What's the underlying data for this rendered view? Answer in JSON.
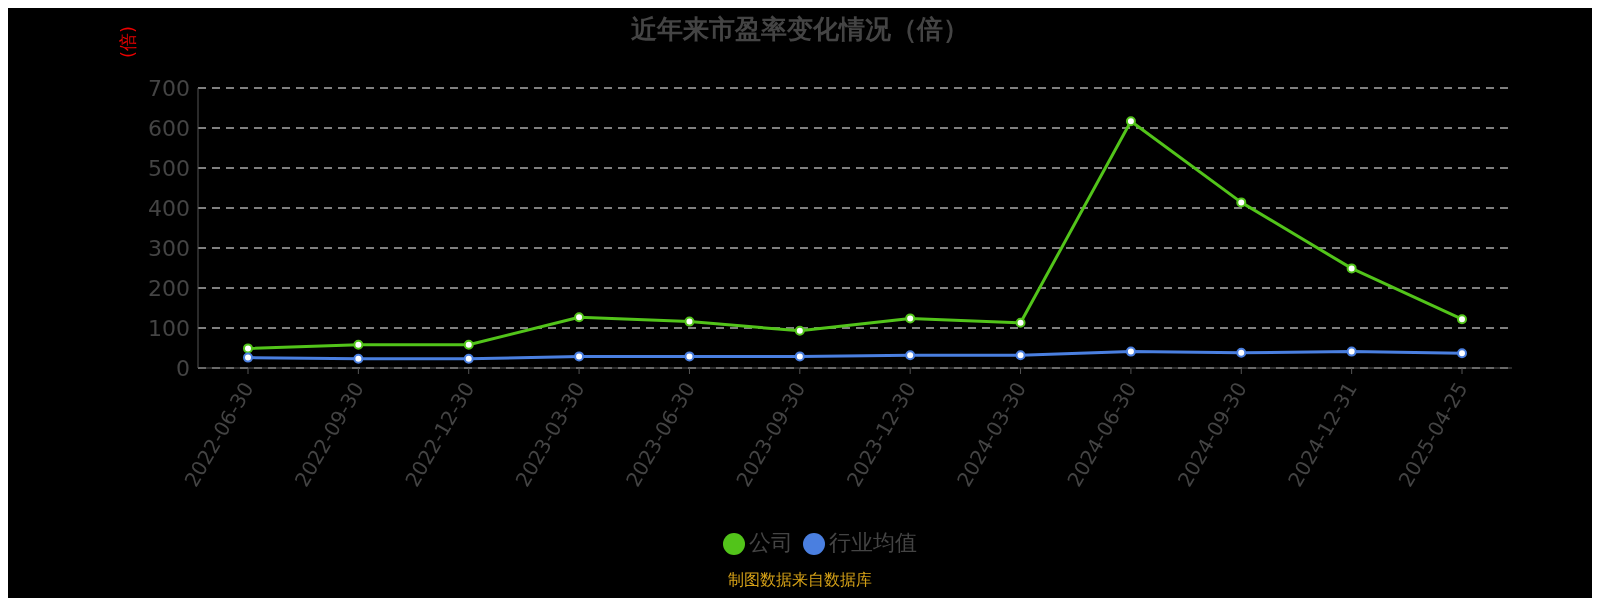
{
  "chart_data": {
    "type": "line",
    "title": "近年来市盈率变化情况（倍）",
    "ylabel": "(倍)",
    "categories": [
      "2022-06-30",
      "2022-09-30",
      "2022-12-30",
      "2023-03-30",
      "2023-06-30",
      "2023-09-30",
      "2023-12-30",
      "2024-03-30",
      "2024-06-30",
      "2024-09-30",
      "2024-12-31",
      "2025-04-25"
    ],
    "series": [
      {
        "name": "公司",
        "color": "#52c41a",
        "values": [
          49,
          58,
          58,
          127,
          116,
          93,
          124,
          113,
          617,
          414,
          249,
          122
        ]
      },
      {
        "name": "行业均值",
        "color": "#4a7fe0",
        "values": [
          26,
          23,
          23,
          29,
          29,
          29,
          32,
          32,
          41,
          38,
          41,
          37
        ]
      }
    ],
    "ylim": [
      0,
      700
    ],
    "yticks": [
      0,
      100,
      200,
      300,
      400,
      500,
      600,
      700
    ],
    "grid": "y",
    "legend": "bottom",
    "marker": "circle",
    "line_style": "solid",
    "annotations": [
      "制图数据来自数据库"
    ]
  }
}
